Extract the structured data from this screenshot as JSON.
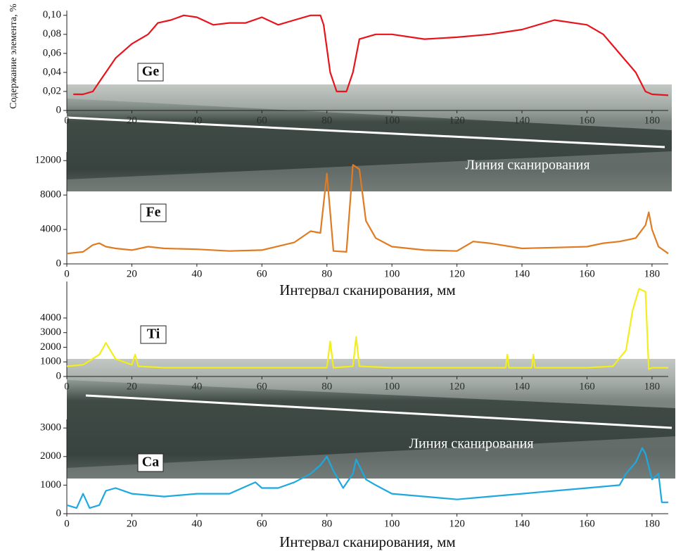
{
  "chart_data": [
    {
      "type": "line",
      "ylabel": "Содержание элемента, %",
      "annotation": "Линия сканирования",
      "xlim": [
        0,
        185
      ],
      "xticks": [
        0,
        20,
        40,
        60,
        80,
        100,
        120,
        140,
        160,
        180
      ],
      "ylim": [
        0,
        0.105
      ],
      "yticks": [
        0,
        {
          "value": 0.02,
          "label": "0,02"
        },
        {
          "value": 0.04,
          "label": "0,04"
        },
        {
          "value": 0.06,
          "label": "0,06"
        },
        {
          "value": 0.08,
          "label": "0,08"
        },
        {
          "value": 0.1,
          "label": "0,10"
        }
      ],
      "x": [
        2,
        5,
        8,
        10,
        15,
        20,
        25,
        28,
        32,
        36,
        40,
        45,
        50,
        55,
        60,
        65,
        70,
        75,
        78,
        79,
        81,
        83,
        86,
        88,
        90,
        95,
        100,
        110,
        120,
        130,
        140,
        150,
        160,
        165,
        170,
        175,
        178,
        180,
        185
      ],
      "series": [
        {
          "name": "Ge",
          "color": "#e8141c",
          "values": [
            0.017,
            0.017,
            0.02,
            0.03,
            0.055,
            0.07,
            0.08,
            0.092,
            0.095,
            0.1,
            0.098,
            0.09,
            0.092,
            0.092,
            0.098,
            0.09,
            0.095,
            0.1,
            0.1,
            0.09,
            0.04,
            0.02,
            0.02,
            0.04,
            0.075,
            0.08,
            0.08,
            0.075,
            0.077,
            0.08,
            0.085,
            0.095,
            0.09,
            0.08,
            0.06,
            0.04,
            0.02,
            0.017,
            0.016
          ]
        }
      ]
    },
    {
      "type": "line",
      "xlabel": "Интервал сканирования, мм",
      "xlim": [
        0,
        185
      ],
      "xticks": [
        0,
        20,
        40,
        60,
        80,
        100,
        120,
        140,
        160,
        180
      ],
      "ylim": [
        0,
        13000
      ],
      "yticks": [
        0,
        4000,
        8000,
        12000
      ],
      "x": [
        0,
        5,
        8,
        10,
        12,
        15,
        20,
        25,
        30,
        40,
        50,
        60,
        70,
        75,
        78,
        80,
        81,
        82,
        86,
        88,
        90,
        92,
        95,
        100,
        110,
        120,
        125,
        130,
        140,
        150,
        160,
        165,
        170,
        175,
        178,
        179,
        180,
        182,
        185
      ],
      "series": [
        {
          "name": "Fe",
          "color": "#e07b22",
          "values": [
            1200,
            1400,
            2200,
            2400,
            2000,
            1800,
            1600,
            2000,
            1800,
            1700,
            1500,
            1600,
            2500,
            3800,
            3600,
            10500,
            6000,
            1500,
            1400,
            11500,
            11000,
            5000,
            3000,
            2000,
            1600,
            1500,
            2600,
            2400,
            1800,
            1900,
            2000,
            2400,
            2600,
            3000,
            4500,
            6000,
            4000,
            2000,
            1200
          ]
        }
      ]
    },
    {
      "type": "line",
      "annotation": "Линия сканирования",
      "xlim": [
        0,
        185
      ],
      "xticks": [
        0,
        20,
        40,
        60,
        80,
        100,
        120,
        140,
        160,
        180
      ],
      "ylim": [
        0,
        6500
      ],
      "yticks": [
        0,
        1000,
        2000,
        3000,
        4000
      ],
      "x": [
        0,
        5,
        10,
        12,
        15,
        20,
        21,
        22,
        30,
        40,
        60,
        80,
        81,
        82,
        88,
        89,
        90,
        100,
        120,
        135,
        135.5,
        136,
        143,
        143.5,
        144,
        160,
        168,
        172,
        174,
        176,
        178,
        179,
        180,
        185
      ],
      "series": [
        {
          "name": "Ti",
          "color": "#f2ee1a",
          "values": [
            700,
            800,
            1500,
            2300,
            1200,
            800,
            1500,
            700,
            600,
            600,
            600,
            600,
            2400,
            600,
            700,
            2700,
            700,
            600,
            600,
            600,
            1500,
            600,
            600,
            1500,
            600,
            600,
            700,
            1800,
            4500,
            6000,
            5800,
            500,
            600,
            600
          ]
        }
      ]
    },
    {
      "type": "line",
      "xlabel": "Интервал сканирования, мм",
      "xlim": [
        0,
        185
      ],
      "xticks": [
        0,
        20,
        40,
        60,
        80,
        100,
        120,
        140,
        160,
        180
      ],
      "ylim": [
        0,
        3300
      ],
      "yticks": [
        0,
        1000,
        2000,
        3000
      ],
      "x": [
        0,
        3,
        5,
        7,
        10,
        12,
        15,
        20,
        30,
        40,
        50,
        58,
        60,
        65,
        70,
        75,
        78,
        80,
        82,
        85,
        88,
        89,
        92,
        95,
        100,
        110,
        120,
        130,
        140,
        150,
        160,
        170,
        172,
        175,
        177,
        178,
        180,
        182,
        183,
        185
      ],
      "series": [
        {
          "name": "Ca",
          "color": "#1ea8e0",
          "values": [
            300,
            200,
            700,
            200,
            300,
            800,
            900,
            700,
            600,
            700,
            700,
            1100,
            900,
            900,
            1100,
            1400,
            1700,
            2000,
            1500,
            900,
            1400,
            1900,
            1200,
            1000,
            700,
            600,
            500,
            600,
            700,
            800,
            900,
            1000,
            1400,
            1800,
            2300,
            2100,
            1200,
            1400,
            400,
            400
          ]
        }
      ]
    }
  ]
}
